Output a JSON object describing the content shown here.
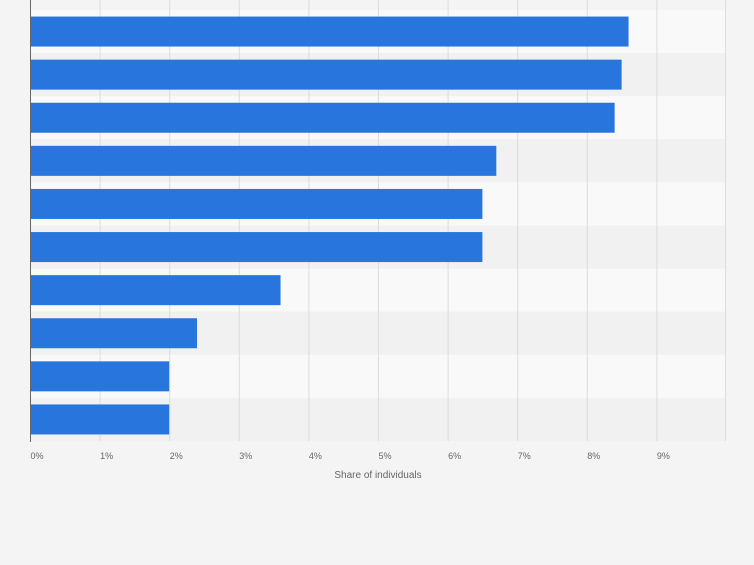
{
  "chart_data": {
    "type": "bar",
    "orientation": "horizontal",
    "title": "",
    "xlabel": "Share of individuals",
    "ylabel": "",
    "xlim": [
      0,
      10
    ],
    "x_ticks": [
      "0%",
      "1%",
      "2%",
      "3%",
      "4%",
      "5%",
      "6%",
      "7%",
      "8%",
      "9%"
    ],
    "categories": [
      "",
      "",
      "",
      "",
      "",
      "",
      "",
      "",
      "",
      ""
    ],
    "values": [
      8.6,
      8.5,
      8.4,
      6.7,
      6.5,
      6.5,
      3.6,
      2.4,
      2.0,
      2.0
    ],
    "grid": true,
    "legend": "none"
  },
  "colors": {
    "bar": "#2876dd",
    "band_light": "#f9f9f9",
    "band_dark": "#f1f1f1",
    "gridline": "#dcdcdc",
    "axis": "#666666",
    "tick_text": "#666666",
    "background": "#f4f4f4"
  }
}
